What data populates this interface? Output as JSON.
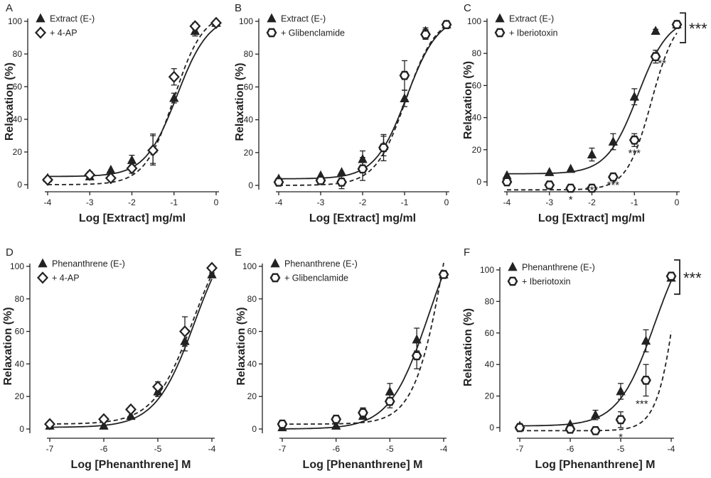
{
  "colors": {
    "ink": "#222222",
    "background": "#ffffff"
  },
  "chart_data": [
    {
      "type": "scatter",
      "panel": "A",
      "xlabel": "Log [Extract] mg/ml",
      "ylabel": "Relaxation (%)",
      "xlim": [
        -4,
        0
      ],
      "ylim": [
        0,
        100
      ],
      "xticks": [
        -4,
        -3,
        -2,
        -1,
        0
      ],
      "yticks": [
        0,
        20,
        40,
        60,
        80,
        100
      ],
      "series": [
        {
          "name": "Extract (E-)",
          "marker": "triangle",
          "line": "solid",
          "x": [
            -4,
            -3,
            -2.5,
            -2,
            -1.5,
            -1,
            -0.5,
            0
          ],
          "y": [
            4,
            5,
            9,
            15,
            22,
            53,
            94,
            99
          ],
          "err": [
            0,
            0,
            0,
            3,
            9,
            3,
            3,
            1
          ],
          "fit": {
            "bottom": 5,
            "top": 104,
            "ec50": -0.93,
            "hill": 1.15
          }
        },
        {
          "name": "+ 4-AP",
          "marker": "diamond",
          "line": "dashed",
          "x": [
            -4,
            -3,
            -2.5,
            -2,
            -1.5,
            -1,
            -0.5,
            0
          ],
          "y": [
            3,
            6,
            4,
            10,
            21,
            66,
            97,
            99
          ],
          "err": [
            0,
            2,
            0,
            3,
            9,
            5,
            2,
            1
          ],
          "fit": {
            "bottom": 0,
            "top": 106,
            "ec50": -1.0,
            "hill": 1.25
          }
        }
      ],
      "annotations": []
    },
    {
      "type": "scatter",
      "panel": "B",
      "xlabel": "Log [Extract] mg/ml",
      "ylabel": "Relaxation (%)",
      "xlim": [
        -4,
        0
      ],
      "ylim": [
        0,
        100
      ],
      "xticks": [
        -4,
        -3,
        -2,
        -1,
        0
      ],
      "yticks": [
        0,
        20,
        40,
        60,
        80,
        100
      ],
      "series": [
        {
          "name": "Extract (E-)",
          "marker": "triangle",
          "line": "solid",
          "x": [
            -4,
            -3,
            -2.5,
            -2,
            -1.5,
            -1,
            -0.5,
            0
          ],
          "y": [
            4,
            6,
            8,
            16,
            24,
            53,
            94,
            98
          ],
          "err": [
            0,
            0,
            0,
            5,
            6,
            5,
            2,
            1
          ],
          "fit": {
            "bottom": 4,
            "top": 104,
            "ec50": -0.95,
            "hill": 1.15
          }
        },
        {
          "name": "+ Glibenclamide",
          "marker": "hexagon",
          "line": "dashed",
          "x": [
            -4,
            -3,
            -2.5,
            -2,
            -1.5,
            -1,
            -0.5,
            0
          ],
          "y": [
            2,
            3,
            2,
            10,
            23,
            67,
            92,
            98
          ],
          "err": [
            0,
            2,
            4,
            7,
            8,
            9,
            3,
            1
          ],
          "fit": {
            "bottom": 0,
            "top": 104,
            "ec50": -0.97,
            "hill": 1.2
          }
        }
      ],
      "annotations": []
    },
    {
      "type": "scatter",
      "panel": "C",
      "xlabel": "Log [Extract] mg/ml",
      "ylabel": "Relaxation (%)",
      "xlim": [
        -4,
        0
      ],
      "ylim": [
        0,
        100
      ],
      "xticks": [
        -4,
        -3,
        -2,
        -1,
        0
      ],
      "yticks": [
        0,
        20,
        40,
        60,
        80,
        100
      ],
      "series": [
        {
          "name": "Extract (E-)",
          "marker": "triangle",
          "line": "solid",
          "x": [
            -4,
            -3,
            -2.5,
            -2,
            -1.5,
            -1,
            -0.5,
            0
          ],
          "y": [
            4,
            6,
            8,
            17,
            25,
            53,
            94,
            98
          ],
          "err": [
            0,
            0,
            0,
            4,
            5,
            5,
            1,
            1
          ],
          "fit": {
            "bottom": 5,
            "top": 103,
            "ec50": -0.92,
            "hill": 1.2
          }
        },
        {
          "name": "+ Iberiotoxin",
          "marker": "hexagon",
          "line": "dashed",
          "x": [
            -4,
            -3,
            -2.5,
            -2,
            -1.5,
            -1,
            -0.5,
            0
          ],
          "y": [
            0,
            -2,
            -4,
            -4,
            3,
            26,
            78,
            98
          ],
          "err": [
            0,
            0,
            2,
            0,
            2,
            4,
            4,
            1
          ],
          "fit": {
            "bottom": -5,
            "top": 105,
            "ec50": -0.6,
            "hill": 1.5
          }
        }
      ],
      "annotations": [
        {
          "text": "*",
          "x": -2.5,
          "y": -11
        },
        {
          "text": "***",
          "x": -2.0,
          "y": -5
        },
        {
          "text": "***",
          "x": -1.5,
          "y": -2
        },
        {
          "text": "***",
          "x": -1.0,
          "y": 18
        },
        {
          "text": "**",
          "x": -0.35,
          "y": 74
        }
      ],
      "bracket": {
        "text": "***",
        "y_top": 99,
        "y_bottom": 92
      }
    },
    {
      "type": "scatter",
      "panel": "D",
      "xlabel": "Log [Phenanthrene] M",
      "ylabel": "Relaxation (%)",
      "xlim": [
        -7,
        -4
      ],
      "ylim": [
        0,
        100
      ],
      "xticks": [
        -7,
        -6,
        -5,
        -4
      ],
      "yticks": [
        0,
        20,
        40,
        60,
        80,
        100
      ],
      "series": [
        {
          "name": "Phenanthrene (E-)",
          "marker": "triangle",
          "line": "solid",
          "x": [
            -7,
            -6,
            -5.5,
            -5,
            -4.5,
            -4
          ],
          "y": [
            2,
            2,
            8,
            23,
            54,
            95
          ],
          "err": [
            0,
            0,
            0,
            3,
            6,
            1
          ],
          "fit": {
            "bottom": 1,
            "top": 130,
            "ec50": -4.32,
            "hill": 1.2
          }
        },
        {
          "name": "+ 4-AP",
          "marker": "diamond",
          "line": "dashed",
          "x": [
            -7,
            -6,
            -5.5,
            -5,
            -4.5,
            -4
          ],
          "y": [
            3,
            6,
            12,
            26,
            60,
            99
          ],
          "err": [
            0,
            0,
            0,
            3,
            9,
            1
          ],
          "fit": {
            "bottom": 3,
            "top": 130,
            "ec50": -4.35,
            "hill": 1.2
          }
        }
      ],
      "annotations": []
    },
    {
      "type": "scatter",
      "panel": "E",
      "xlabel": "Log [Phenanthrene] M",
      "ylabel": "Relaxation (%)",
      "xlim": [
        -7,
        -4
      ],
      "ylim": [
        0,
        100
      ],
      "xticks": [
        -7,
        -6,
        -5,
        -4
      ],
      "yticks": [
        0,
        20,
        40,
        60,
        80,
        100
      ],
      "series": [
        {
          "name": "Phenanthrene (E-)",
          "marker": "triangle",
          "line": "solid",
          "x": [
            -7,
            -6,
            -5.5,
            -5,
            -4.5,
            -4
          ],
          "y": [
            1,
            2,
            8,
            23,
            55,
            95
          ],
          "err": [
            0,
            0,
            0,
            5,
            7,
            1
          ],
          "fit": {
            "bottom": 0,
            "top": 140,
            "ec50": -4.28,
            "hill": 1.2
          }
        },
        {
          "name": "+ Glibenclamide",
          "marker": "hexagon",
          "line": "dashed",
          "x": [
            -7,
            -6,
            -5.5,
            -5,
            -4.5,
            -4
          ],
          "y": [
            3,
            6,
            10,
            17,
            45,
            95
          ],
          "err": [
            0,
            0,
            3,
            4,
            8,
            1
          ],
          "fit": {
            "bottom": 3,
            "top": 220,
            "ec50": -3.95,
            "hill": 1.5
          }
        }
      ],
      "annotations": []
    },
    {
      "type": "scatter",
      "panel": "F",
      "xlabel": "Log [Phenanthrene] M",
      "ylabel": "Relaxation (%)",
      "xlim": [
        -7,
        -4
      ],
      "ylim": [
        0,
        100
      ],
      "xticks": [
        -7,
        -6,
        -5,
        -4
      ],
      "yticks": [
        0,
        20,
        40,
        60,
        80,
        100
      ],
      "series": [
        {
          "name": "Phenanthrene (E-)",
          "marker": "triangle",
          "line": "solid",
          "x": [
            -7,
            -6,
            -5.5,
            -5,
            -4.5,
            -4
          ],
          "y": [
            1,
            2,
            8,
            23,
            55,
            95
          ],
          "err": [
            0,
            0,
            3,
            5,
            7,
            1
          ],
          "fit": {
            "bottom": 1,
            "top": 130,
            "ec50": -4.33,
            "hill": 1.2
          }
        },
        {
          "name": "+ Iberiotoxin",
          "marker": "hexagon",
          "line": "dashed",
          "x": [
            -7,
            -6,
            -5.5,
            -5,
            -4.5,
            -4
          ],
          "y": [
            0,
            -1,
            -2,
            5,
            30,
            96
          ],
          "err": [
            0,
            0,
            0,
            5,
            10,
            1
          ],
          "fit": {
            "bottom": -2,
            "top": 260,
            "ec50": -3.75,
            "hill": 2.0
          }
        }
      ],
      "annotations": [
        {
          "text": "*",
          "x": -5.0,
          "y": -6
        },
        {
          "text": "***",
          "x": -4.58,
          "y": 15
        }
      ],
      "bracket": {
        "text": "***",
        "y_top": 100,
        "y_bottom": 90
      }
    }
  ]
}
